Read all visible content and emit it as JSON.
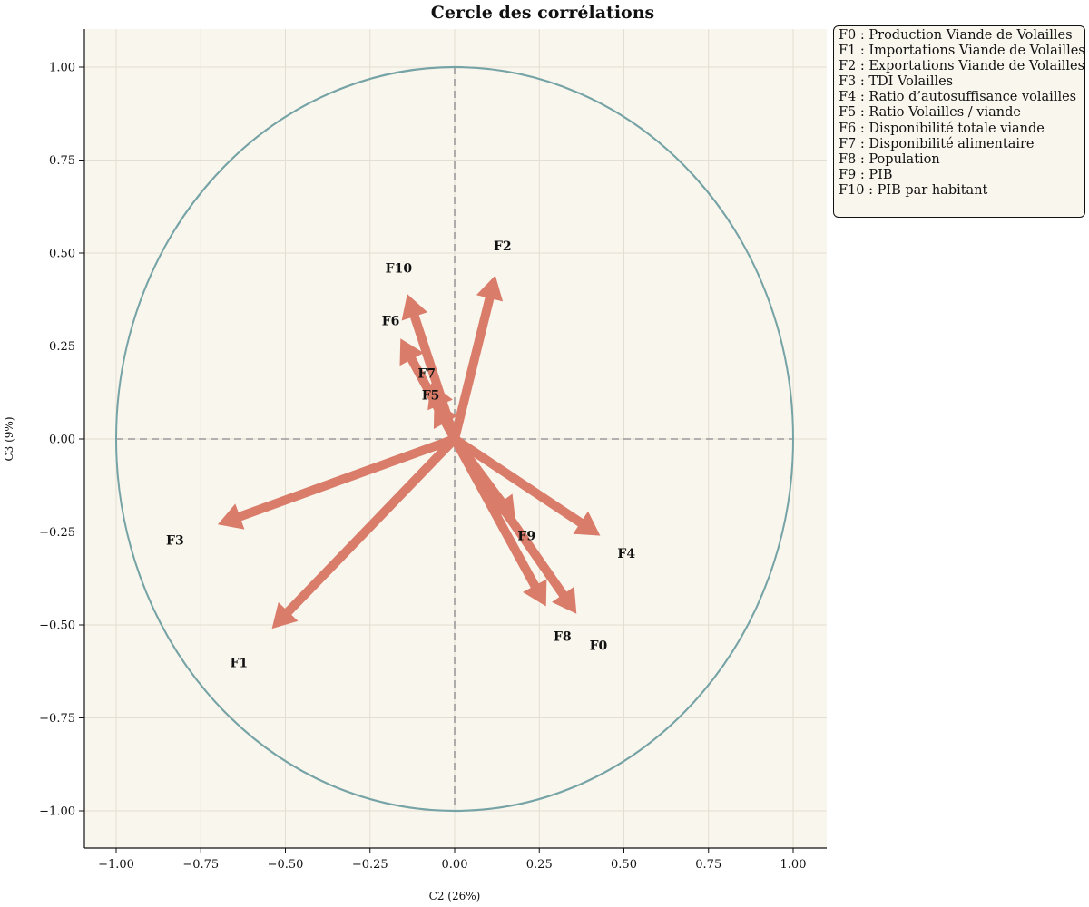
{
  "chart_data": {
    "type": "scatter",
    "title": "Cercle des corrélations",
    "xlabel": "C2 (26%)",
    "ylabel": "C3 (9%)",
    "xlim": [
      -1.1,
      1.1
    ],
    "ylim": [
      -1.1,
      1.1
    ],
    "grid": true,
    "legend_position": "outside top-right",
    "x_ticks": [
      "−1.00",
      "−0.75",
      "−0.50",
      "−0.25",
      "0.00",
      "0.25",
      "0.50",
      "0.75",
      "1.00"
    ],
    "y_ticks": [
      "1.00",
      "0.75",
      "0.50",
      "0.25",
      "0.00",
      "−0.25",
      "−0.50",
      "−0.75",
      "−1.00"
    ],
    "unit_circle": true,
    "vectors": [
      {
        "label": "F0",
        "x": 0.36,
        "y": -0.47
      },
      {
        "label": "F1",
        "x": -0.54,
        "y": -0.51
      },
      {
        "label": "F2",
        "x": 0.12,
        "y": 0.44
      },
      {
        "label": "F3",
        "x": -0.7,
        "y": -0.23
      },
      {
        "label": "F4",
        "x": 0.43,
        "y": -0.26
      },
      {
        "label": "F5",
        "x": -0.06,
        "y": 0.1
      },
      {
        "label": "F6",
        "x": -0.16,
        "y": 0.27
      },
      {
        "label": "F7",
        "x": -0.07,
        "y": 0.15
      },
      {
        "label": "F8",
        "x": 0.27,
        "y": -0.45
      },
      {
        "label": "F9",
        "x": 0.18,
        "y": -0.22
      },
      {
        "label": "F10",
        "x": -0.14,
        "y": 0.39
      }
    ],
    "legend": [
      "F0 : Production Viande de Volailles",
      "F1 : Importations Viande de Volailles",
      "F2 : Exportations Viande de Volailles",
      "F3 : TDI Volailles",
      "F4 : Ratio d’autosuffisance volailles",
      "F5 : Ratio Volailles / viande",
      "F6 : Disponibilité totale viande",
      "F7 : Disponibilité alimentaire",
      "F8 : Population",
      "F9 : PIB",
      "F10 : PIB par habitant"
    ],
    "colors": {
      "arrow": "#d97c6a",
      "circle": "#76a3a5",
      "plot_background": "#f9f6ee",
      "dashed_axes": "#9a9a9a"
    }
  }
}
